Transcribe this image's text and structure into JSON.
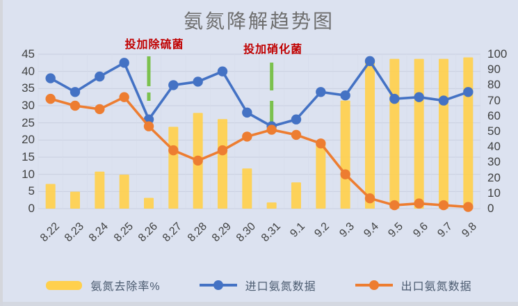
{
  "colors": {
    "background": "#dce2f0",
    "bar": "#FFD04D",
    "inlet_line": "#4472C4",
    "outlet_line": "#ED7D31",
    "annotation_text": "#C00000",
    "annotation_line": "#76C046",
    "grid_h": "#c7cdde",
    "grid_v": "#d5dbe9",
    "title_text": "#6e6e6e",
    "axis_text": "#3f4040",
    "legend_text": "#4a5a6f"
  },
  "chart_data": {
    "type": "combo",
    "title": "氨氮降解趋势图",
    "categories": [
      "8.22",
      "8.23",
      "8.24",
      "8.25",
      "8.26",
      "8.27",
      "8.28",
      "8.29",
      "8.30",
      "8.31",
      "9.1",
      "9.2",
      "9.3",
      "9.4",
      "9.5",
      "9.6",
      "9.7",
      "9.8"
    ],
    "series": [
      {
        "name": "氨氮去除率%",
        "type": "bar",
        "axis": "right",
        "color": "#FFD04D",
        "values": [
          16,
          11,
          24,
          22,
          7,
          53,
          62,
          58,
          26,
          4,
          17,
          43,
          70,
          97,
          97,
          97,
          97,
          98
        ]
      },
      {
        "name": "进口氨氮数据",
        "type": "line",
        "axis": "left",
        "color": "#4472C4",
        "values": [
          38,
          34,
          38.5,
          42.5,
          26,
          36,
          37,
          40,
          28,
          24,
          26,
          34,
          33,
          43,
          32,
          32.5,
          31.5,
          34
        ]
      },
      {
        "name": "出口氨氮数据",
        "type": "line",
        "axis": "left",
        "color": "#ED7D31",
        "values": [
          32,
          30,
          29,
          32.5,
          24,
          17,
          14,
          17,
          21,
          23,
          21.5,
          19,
          10,
          3,
          1,
          1.5,
          1,
          0.5
        ]
      }
    ],
    "left_axis": {
      "min": 0,
      "max": 45,
      "ticks": [
        45,
        40,
        35,
        30,
        25,
        20,
        15,
        10,
        5,
        0
      ]
    },
    "right_axis": {
      "min": 0,
      "max": 100,
      "ticks": [
        100,
        90,
        80,
        70,
        60,
        50,
        40,
        30,
        20,
        10,
        0
      ]
    },
    "annotations": [
      {
        "text": "投加除硫菌",
        "category": "8.26"
      },
      {
        "text": "投加硝化菌",
        "category": "8.31"
      }
    ],
    "grid": true,
    "legend_position": "bottom"
  }
}
